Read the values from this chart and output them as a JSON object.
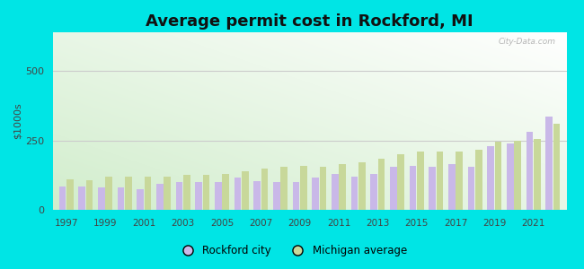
{
  "title": "Average permit cost in Rockford, MI",
  "ylabel": "$1000s",
  "background_outer": "#00e5e5",
  "years": [
    1997,
    1998,
    1999,
    2000,
    2001,
    2002,
    2003,
    2004,
    2005,
    2006,
    2007,
    2008,
    2009,
    2010,
    2011,
    2012,
    2013,
    2014,
    2015,
    2016,
    2017,
    2018,
    2019,
    2020,
    2021,
    2022
  ],
  "rockford": [
    85,
    85,
    82,
    80,
    75,
    95,
    100,
    100,
    100,
    115,
    105,
    100,
    100,
    115,
    130,
    120,
    130,
    155,
    160,
    155,
    165,
    155,
    230,
    240,
    280,
    335
  ],
  "michigan": [
    110,
    108,
    120,
    120,
    120,
    120,
    125,
    125,
    130,
    140,
    150,
    155,
    160,
    155,
    165,
    170,
    185,
    200,
    210,
    210,
    210,
    215,
    245,
    250,
    255,
    310
  ],
  "rockford_color": "#c9b8e8",
  "michigan_color": "#c8d89a",
  "ylim": [
    0,
    640
  ],
  "yticks": [
    0,
    250,
    500
  ],
  "grid_color": "#cccccc",
  "title_fontsize": 13,
  "legend_rockford": "Rockford city",
  "legend_michigan": "Michigan average",
  "watermark": "City-Data.com"
}
